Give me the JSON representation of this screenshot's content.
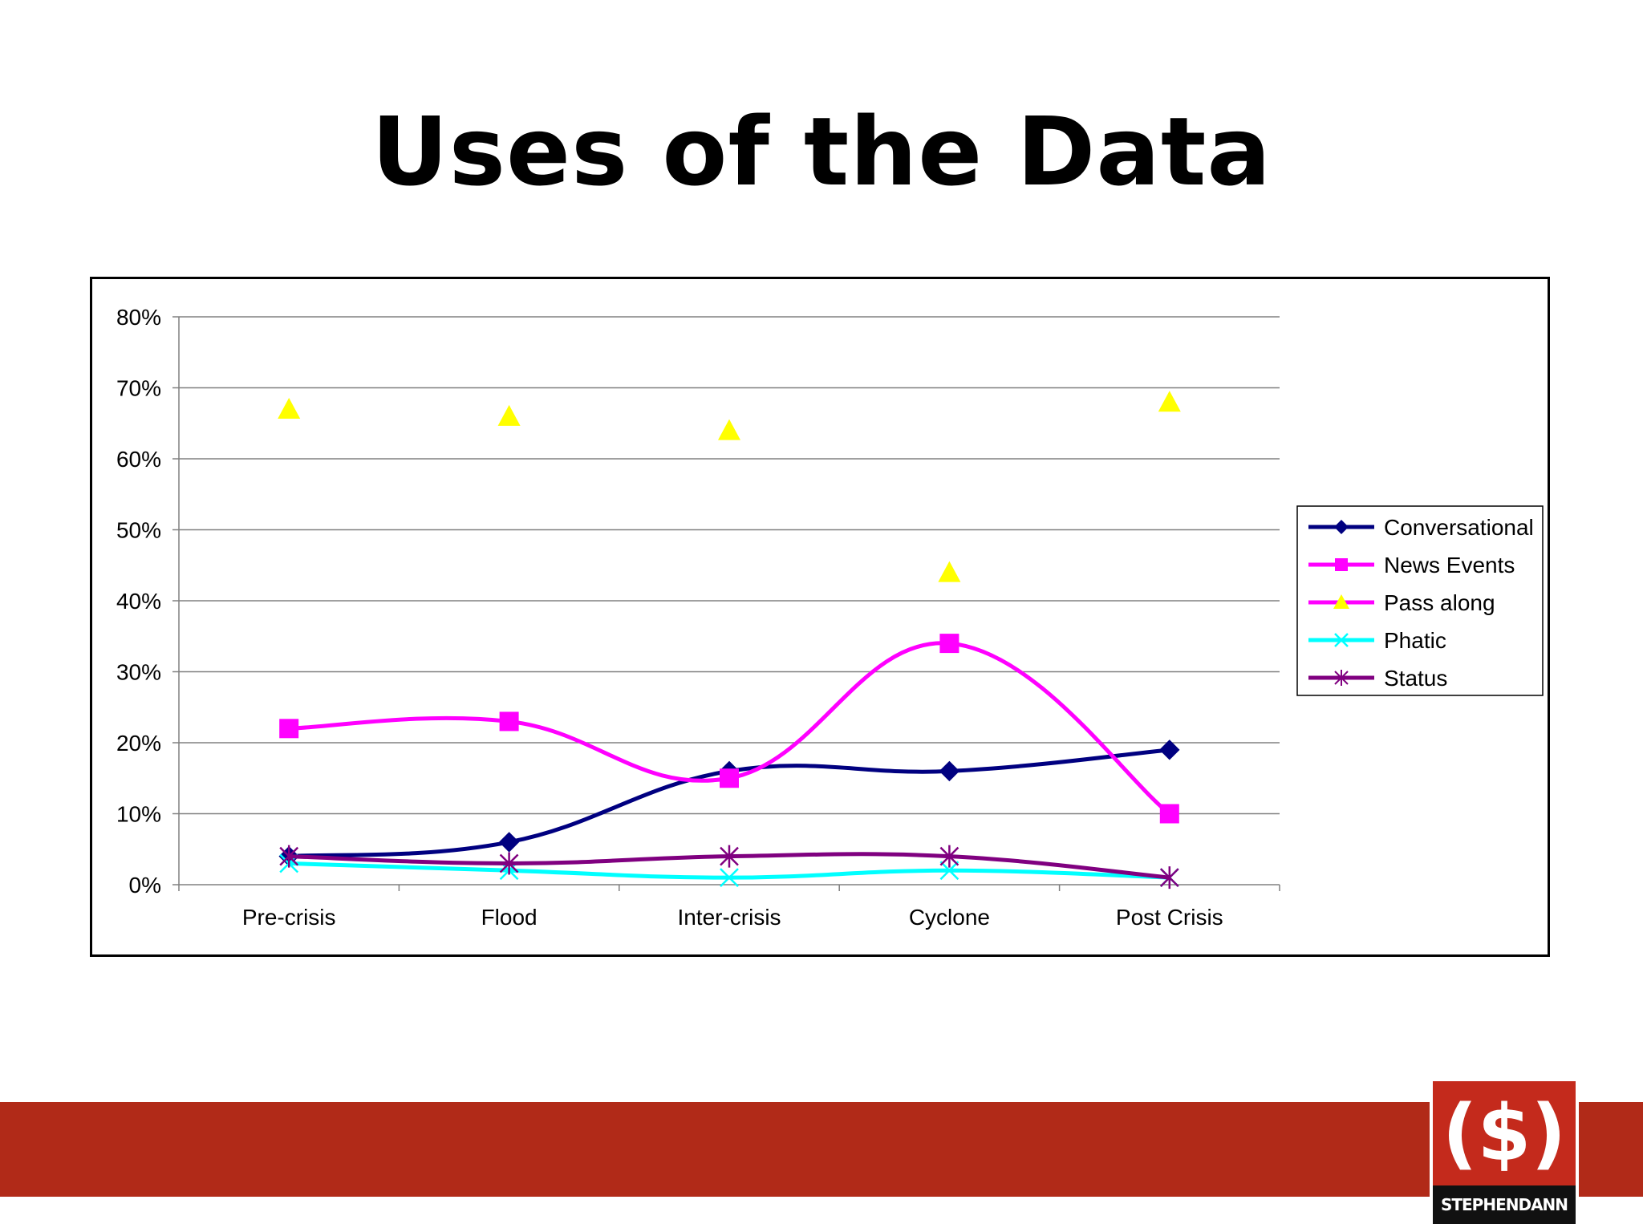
{
  "slide": {
    "title": "Uses of the Data"
  },
  "logo": {
    "mark": "($)",
    "text": "STEPHENDANN"
  },
  "colors": {
    "footer_band": "#b12a18",
    "logo_bg": "#c42a1c"
  },
  "chart_data": {
    "type": "line",
    "categories": [
      "Pre-crisis",
      "Flood",
      "Inter-crisis",
      "Cyclone",
      "Post Crisis"
    ],
    "ylim": [
      0,
      80
    ],
    "yticks": [
      "0%",
      "10%",
      "20%",
      "30%",
      "40%",
      "50%",
      "60%",
      "70%",
      "80%"
    ],
    "grid": true,
    "legend_position": "right",
    "series": [
      {
        "name": "Conversational",
        "values": [
          4,
          6,
          16,
          16,
          19
        ],
        "color": "#000080",
        "marker": "diamond",
        "line": true
      },
      {
        "name": "News Events",
        "values": [
          22,
          23,
          15,
          34,
          10
        ],
        "color": "#ff00ff",
        "marker": "square",
        "line": true
      },
      {
        "name": "Pass along",
        "values": [
          67,
          66,
          64,
          44,
          68
        ],
        "color": "#ffff00",
        "marker": "triangle",
        "line": false,
        "legend_line_color": "#ff00ff"
      },
      {
        "name": "Phatic",
        "values": [
          3,
          2,
          1,
          2,
          1
        ],
        "color": "#00ffff",
        "marker": "x",
        "line": true
      },
      {
        "name": "Status",
        "values": [
          4,
          3,
          4,
          4,
          1
        ],
        "color": "#800080",
        "marker": "star",
        "line": true
      }
    ]
  }
}
